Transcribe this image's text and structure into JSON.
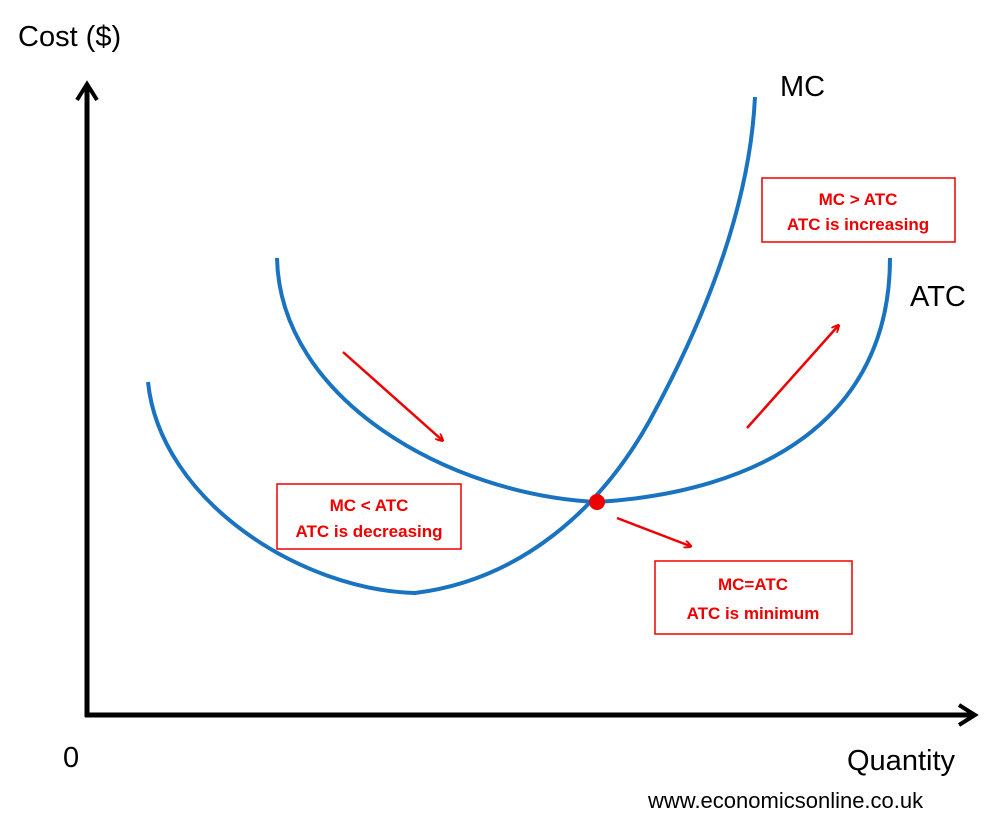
{
  "axes": {
    "y_label": "Cost ($)",
    "x_label": "Quantity",
    "origin": "0"
  },
  "curves": [
    {
      "label": "MC"
    },
    {
      "label": "ATC"
    }
  ],
  "annotations": [
    {
      "lines": [
        "MC > ATC",
        "ATC is increasing"
      ]
    },
    {
      "lines": [
        "MC < ATC",
        "ATC is decreasing"
      ]
    },
    {
      "lines": [
        "MC=ATC",
        "ATC is minimum"
      ]
    }
  ],
  "footer": "www.economicsonline.co.uk"
}
